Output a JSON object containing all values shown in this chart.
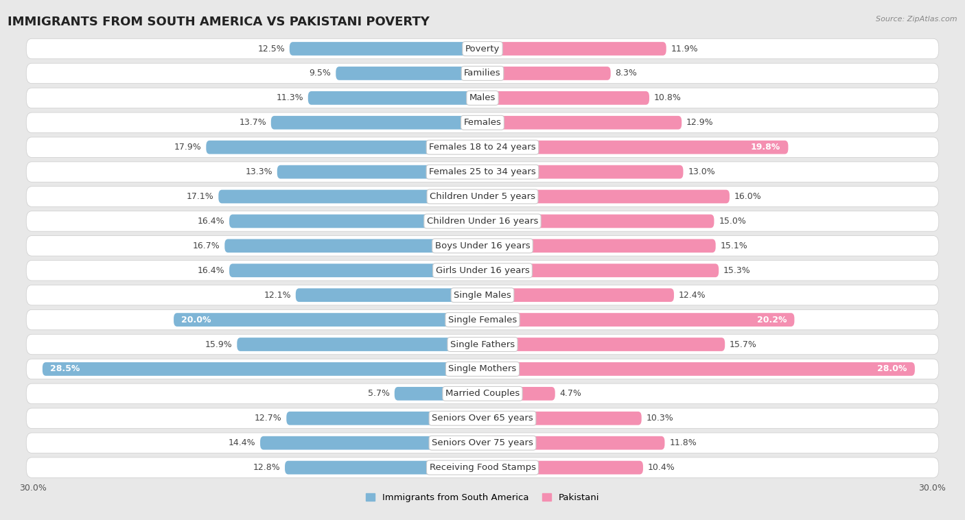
{
  "title": "IMMIGRANTS FROM SOUTH AMERICA VS PAKISTANI POVERTY",
  "source": "Source: ZipAtlas.com",
  "categories": [
    "Poverty",
    "Families",
    "Males",
    "Females",
    "Females 18 to 24 years",
    "Females 25 to 34 years",
    "Children Under 5 years",
    "Children Under 16 years",
    "Boys Under 16 years",
    "Girls Under 16 years",
    "Single Males",
    "Single Females",
    "Single Fathers",
    "Single Mothers",
    "Married Couples",
    "Seniors Over 65 years",
    "Seniors Over 75 years",
    "Receiving Food Stamps"
  ],
  "left_values": [
    12.5,
    9.5,
    11.3,
    13.7,
    17.9,
    13.3,
    17.1,
    16.4,
    16.7,
    16.4,
    12.1,
    20.0,
    15.9,
    28.5,
    5.7,
    12.7,
    14.4,
    12.8
  ],
  "right_values": [
    11.9,
    8.3,
    10.8,
    12.9,
    19.8,
    13.0,
    16.0,
    15.0,
    15.1,
    15.3,
    12.4,
    20.2,
    15.7,
    28.0,
    4.7,
    10.3,
    11.8,
    10.4
  ],
  "left_color": "#7eb5d6",
  "right_color": "#f48fb1",
  "left_label_inside_color": "#3a6ea8",
  "right_label_inside_color": "#c2185b",
  "left_label": "Immigrants from South America",
  "right_label": "Pakistani",
  "xlim": 30.0,
  "background_color": "#e8e8e8",
  "row_bg_color": "#ffffff",
  "title_fontsize": 13,
  "label_fontsize": 9.5,
  "value_fontsize": 9,
  "inside_threshold": 18.0
}
